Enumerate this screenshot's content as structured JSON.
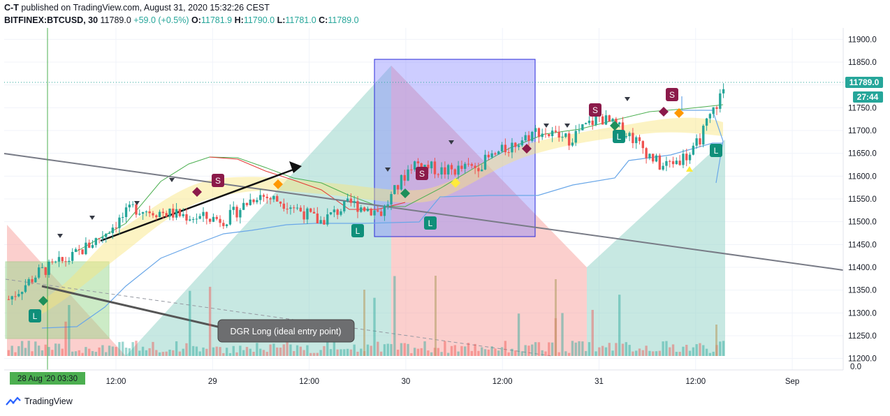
{
  "header": {
    "author": "C-T",
    "published_text": "published on TradingView.com, August 31, 2020 15:32:26 CEST",
    "symbol": "BITFINEX:BTCUSD, 30",
    "last": "11789.0",
    "change": "+59.0 (+0.5%)",
    "open_label": "O:",
    "open": "11781.9",
    "high_label": "H:",
    "high": "11790.0",
    "low_label": "L:",
    "low": "11781.0",
    "close_label": "C:",
    "close": "11789.0"
  },
  "price_axis": {
    "ticks": [
      "11900.0",
      "11850.0",
      "11800.0",
      "11750.0",
      "11700.0",
      "11650.0",
      "11600.0",
      "11550.0",
      "11500.0",
      "11450.0",
      "11400.0",
      "11350.0",
      "11300.0",
      "11250.0",
      "11200.0"
    ],
    "last_price_tag": "11789.0",
    "countdown_tag": "27:44",
    "volume_tick": "0.0"
  },
  "time_axis": {
    "ticks": [
      "12:00",
      "29",
      "12:00",
      "30",
      "12:00",
      "31",
      "12:00",
      "Sep"
    ],
    "crosshair_label": "28 Aug '20   03:30"
  },
  "annotation": {
    "text": "DGR Long (ideal entry point)"
  },
  "signals": [
    {
      "type": "L"
    },
    {
      "type": "S"
    },
    {
      "type": "L"
    },
    {
      "type": "S"
    },
    {
      "type": "L"
    },
    {
      "type": "S"
    },
    {
      "type": "L"
    },
    {
      "type": "S"
    },
    {
      "type": "L"
    }
  ],
  "footer": {
    "brand": "TradingView"
  },
  "chart_data": {
    "type": "candlestick",
    "symbol": "BITFINEX:BTCUSD",
    "interval": "30",
    "x_ticks": [
      "12:00",
      "29",
      "12:00",
      "30",
      "12:00",
      "31",
      "12:00",
      "Sep"
    ],
    "ylim": [
      11175,
      11925
    ],
    "close_path_approx": [
      {
        "x": "28 Aug 03:30",
        "y": 11330
      },
      {
        "x": "28 Aug 06:00",
        "y": 11390
      },
      {
        "x": "28 Aug 09:00",
        "y": 11420
      },
      {
        "x": "28 Aug 12:00",
        "y": 11470
      },
      {
        "x": "28 Aug 16:00",
        "y": 11530
      },
      {
        "x": "28 Aug 20:00",
        "y": 11520
      },
      {
        "x": "29 Aug 00:00",
        "y": 11510
      },
      {
        "x": "29 Aug 04:00",
        "y": 11505
      },
      {
        "x": "29 Aug 08:00",
        "y": 11560
      },
      {
        "x": "29 Aug 12:00",
        "y": 11540
      },
      {
        "x": "29 Aug 16:00",
        "y": 11500
      },
      {
        "x": "29 Aug 20:00",
        "y": 11540
      },
      {
        "x": "30 Aug 00:00",
        "y": 11520
      },
      {
        "x": "30 Aug 04:00",
        "y": 11630
      },
      {
        "x": "30 Aug 08:00",
        "y": 11610
      },
      {
        "x": "30 Aug 12:00",
        "y": 11620
      },
      {
        "x": "30 Aug 16:00",
        "y": 11660
      },
      {
        "x": "30 Aug 20:00",
        "y": 11700
      },
      {
        "x": "31 Aug 00:00",
        "y": 11680
      },
      {
        "x": "31 Aug 04:00",
        "y": 11730
      },
      {
        "x": "31 Aug 08:00",
        "y": 11690
      },
      {
        "x": "31 Aug 10:00",
        "y": 11620
      },
      {
        "x": "31 Aug 12:00",
        "y": 11650
      },
      {
        "x": "31 Aug 15:30",
        "y": 11789
      }
    ],
    "last_price": 11789.0,
    "open": 11781.9,
    "high": 11790.0,
    "low": 11781.0,
    "close": 11789.0,
    "change": 59.0,
    "change_pct": 0.5,
    "colors": {
      "up": "#26a69a",
      "down": "#ef5350",
      "box": "#6b6bff",
      "line": "#787b86"
    }
  }
}
